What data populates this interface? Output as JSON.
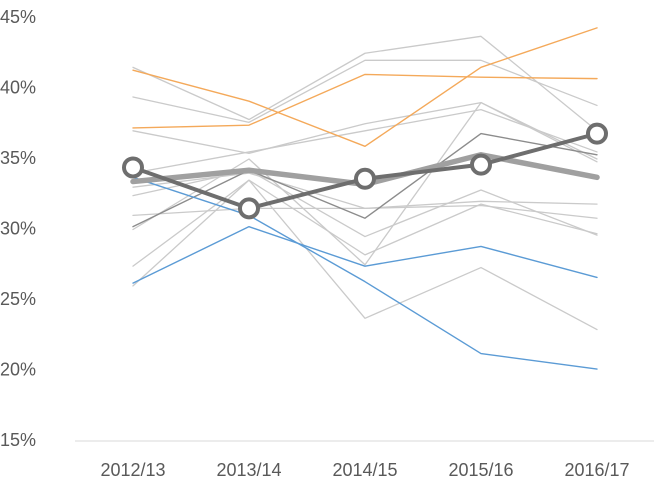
{
  "chart_data": {
    "type": "line",
    "categories": [
      "2012/13",
      "2013/14",
      "2014/15",
      "2015/16",
      "2016/17"
    ],
    "ylim": [
      15,
      45
    ],
    "yticks": [
      {
        "value": 15,
        "label": "15%"
      },
      {
        "value": 20,
        "label": "20%"
      },
      {
        "value": 25,
        "label": "25%"
      },
      {
        "value": 30,
        "label": "30%"
      },
      {
        "value": 35,
        "label": "35%"
      },
      {
        "value": 40,
        "label": "40%"
      },
      {
        "value": 45,
        "label": "45%"
      }
    ],
    "grid": false,
    "series": [
      {
        "color": "#cacaca",
        "values": [
          41.5,
          37.8,
          42.5,
          43.7,
          37.0
        ]
      },
      {
        "color": "#cacaca",
        "values": [
          39.4,
          37.6,
          42.0,
          42.0,
          38.8
        ]
      },
      {
        "color": "#cacaca",
        "values": [
          37.0,
          35.4,
          37.5,
          39.0,
          35.0
        ]
      },
      {
        "color": "#cacaca",
        "values": [
          34.0,
          35.5,
          37.0,
          38.5,
          35.5
        ]
      },
      {
        "color": "#cacaca",
        "values": [
          33.0,
          34.0,
          31.5,
          32.0,
          31.8
        ]
      },
      {
        "color": "#cacaca",
        "values": [
          31.0,
          31.5,
          31.5,
          31.7,
          30.8
        ]
      },
      {
        "color": "#cacaca",
        "values": [
          32.4,
          34.2,
          29.5,
          32.8,
          29.6
        ]
      },
      {
        "color": "#cacaca",
        "values": [
          27.4,
          33.5,
          28.2,
          31.8,
          29.7
        ]
      },
      {
        "color": "#cacaca",
        "values": [
          26.0,
          33.5,
          23.7,
          27.3,
          22.9
        ]
      },
      {
        "color": "#cacaca",
        "values": [
          30.0,
          35.0,
          27.5,
          39.0,
          34.8
        ]
      },
      {
        "color": "#8c8c8c",
        "values": [
          30.2,
          34.2,
          30.8,
          36.8,
          35.3
        ]
      },
      {
        "color": "#f4a95a",
        "values": [
          41.3,
          39.1,
          35.9,
          41.5,
          44.3
        ]
      },
      {
        "color": "#f4a95a",
        "values": [
          37.2,
          37.4,
          41.0,
          40.8,
          40.7
        ]
      },
      {
        "color": "#5b9bd5",
        "values": [
          26.2,
          30.2,
          27.4,
          28.8,
          26.6
        ]
      },
      {
        "color": "#5b9bd5",
        "values": [
          33.7,
          31.0,
          26.3,
          21.2,
          20.1
        ]
      },
      {
        "color": "#a0a0a0",
        "values": [
          33.4,
          34.2,
          33.2,
          35.3,
          33.7
        ]
      },
      {
        "color": "#6e6e6e",
        "markers": true,
        "values": [
          34.4,
          31.5,
          33.6,
          34.6,
          36.8
        ]
      }
    ]
  }
}
